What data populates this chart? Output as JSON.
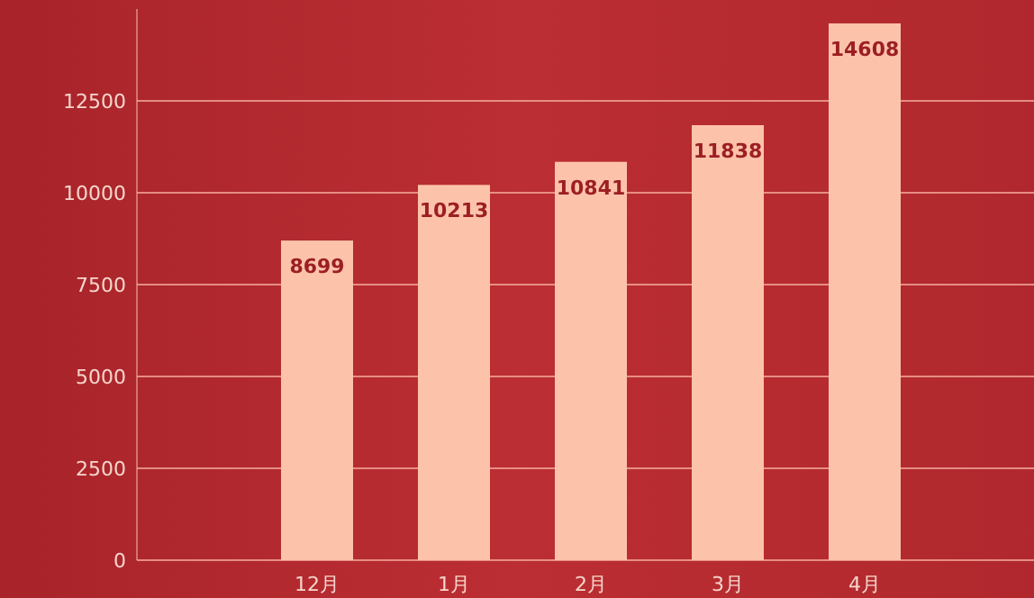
{
  "chart_data": {
    "type": "bar",
    "categories": [
      "12月",
      "1月",
      "2月",
      "3月",
      "4月"
    ],
    "values": [
      8699,
      10213,
      10841,
      11838,
      14608
    ],
    "color": "#fdc3aa",
    "ylim": [
      0,
      15000
    ],
    "yticks": [
      0,
      2500,
      5000,
      7500,
      10000,
      12500
    ],
    "grid": "y",
    "data_labels": true
  }
}
